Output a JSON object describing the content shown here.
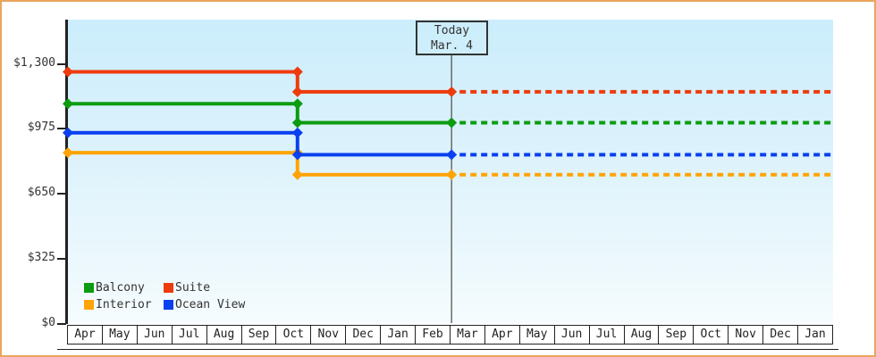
{
  "chart_data": {
    "type": "line",
    "description": "Stepped price-history lines for four cruise cabin categories; solid history up to today, dashed projection after today",
    "annotation": {
      "line1": "Today",
      "line2": "Mar. 4"
    },
    "x_axis": {
      "labels": [
        "Apr",
        "May",
        "Jun",
        "Jul",
        "Aug",
        "Sep",
        "Oct",
        "Nov",
        "Dec",
        "Jan",
        "Feb",
        "Mar",
        "Apr",
        "May",
        "Jun",
        "Jul",
        "Aug",
        "Sep",
        "Oct",
        "Nov",
        "Dec",
        "Jan"
      ],
      "month_count": 22
    },
    "y_axis": {
      "tick_labels": [
        "$0",
        "$325",
        "$650",
        "$975",
        "$1,300"
      ],
      "tick_values": [
        0,
        325,
        650,
        975,
        1300
      ],
      "ylim": [
        0,
        1520
      ],
      "unit": "$"
    },
    "x_start": 0,
    "x_change": 6.6,
    "x_today": 11.03,
    "x_end": 22,
    "grid": false,
    "legend_position": "bottom-left",
    "legend_order": [
      "Balcony",
      "Suite",
      "Interior",
      "Ocean View"
    ],
    "series": [
      {
        "name": "Suite",
        "color": "#ee3b0c",
        "price_before": 1260,
        "price_after": 1160
      },
      {
        "name": "Balcony",
        "color": "#0c9c10",
        "price_before": 1100,
        "price_after": 1005
      },
      {
        "name": "Interior",
        "color": "#ffa406",
        "price_before": 855,
        "price_after": 745
      },
      {
        "name": "Ocean View",
        "color": "#0a40f0",
        "price_before": 955,
        "price_after": 845
      }
    ]
  },
  "frame": {
    "border_color": "#eaa55e",
    "plot_bg_top": "#cbedfb",
    "plot_bg_bottom": "#f6fcfe",
    "axis_color": "#222222",
    "text_color": "#333333",
    "today_line_color": "#555555"
  }
}
